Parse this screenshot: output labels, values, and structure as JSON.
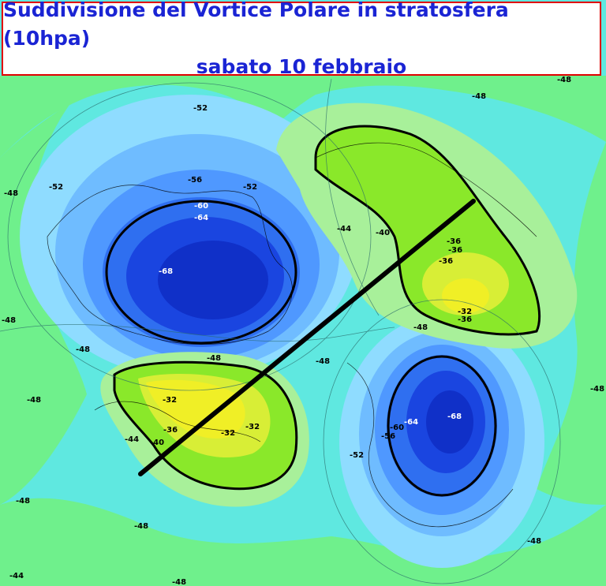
{
  "title": {
    "line1": "Suddivisione del Vortice Polare in stratosfera (10hpa)",
    "line2": "sabato 10 febbraio"
  },
  "colors": {
    "background": "#5fe8e0",
    "title_text": "#1a24d4",
    "title_border": "#e00000"
  },
  "contour_labels": [
    {
      "text": "-48",
      "region": "top-right"
    },
    {
      "text": "-48",
      "region": "top-right-corner"
    },
    {
      "text": "-52",
      "region": "north-america-top"
    },
    {
      "text": "-52",
      "region": "north-america-left"
    },
    {
      "text": "-52",
      "region": "north-america-right"
    },
    {
      "text": "-48",
      "region": "far-left"
    },
    {
      "text": "-56",
      "region": "vortex-west"
    },
    {
      "text": "-60",
      "region": "vortex-west"
    },
    {
      "text": "-64",
      "region": "vortex-west"
    },
    {
      "text": "-68",
      "region": "vortex-west-core"
    },
    {
      "text": "-44",
      "region": "center-north"
    },
    {
      "text": "-40",
      "region": "siberia-high"
    },
    {
      "text": "-36",
      "region": "siberia-high"
    },
    {
      "text": "-36",
      "region": "siberia-high"
    },
    {
      "text": "-36",
      "region": "siberia-high"
    },
    {
      "text": "-32",
      "region": "siberia-high-core"
    },
    {
      "text": "-36",
      "region": "siberia-high-core"
    },
    {
      "text": "-48",
      "region": "siberia-south"
    },
    {
      "text": "-48",
      "region": "left-middle"
    },
    {
      "text": "-48",
      "region": "pacific-high-top"
    },
    {
      "text": "-48",
      "region": "pacific-high-top"
    },
    {
      "text": "-48",
      "region": "center"
    },
    {
      "text": "-32",
      "region": "pacific-high"
    },
    {
      "text": "-36",
      "region": "pacific-high"
    },
    {
      "text": "-32",
      "region": "pacific-high-core"
    },
    {
      "text": "-32",
      "region": "pacific-high-core"
    },
    {
      "text": "-40",
      "region": "pacific-high-edge"
    },
    {
      "text": "-44",
      "region": "pacific-high-edge"
    },
    {
      "text": "-48",
      "region": "left-lower"
    },
    {
      "text": "-60",
      "region": "vortex-east"
    },
    {
      "text": "-64",
      "region": "vortex-east"
    },
    {
      "text": "-68",
      "region": "vortex-east-core"
    },
    {
      "text": "-56",
      "region": "vortex-east"
    },
    {
      "text": "-52",
      "region": "vortex-east"
    },
    {
      "text": "-48",
      "region": "right-lower"
    },
    {
      "text": "-48",
      "region": "bottom-left"
    },
    {
      "text": "-48",
      "region": "bottom-middle"
    },
    {
      "text": "-48",
      "region": "bottom-right"
    },
    {
      "text": "-44",
      "region": "bottom-left-corner"
    },
    {
      "text": "-48",
      "region": "bottom-center"
    }
  ]
}
